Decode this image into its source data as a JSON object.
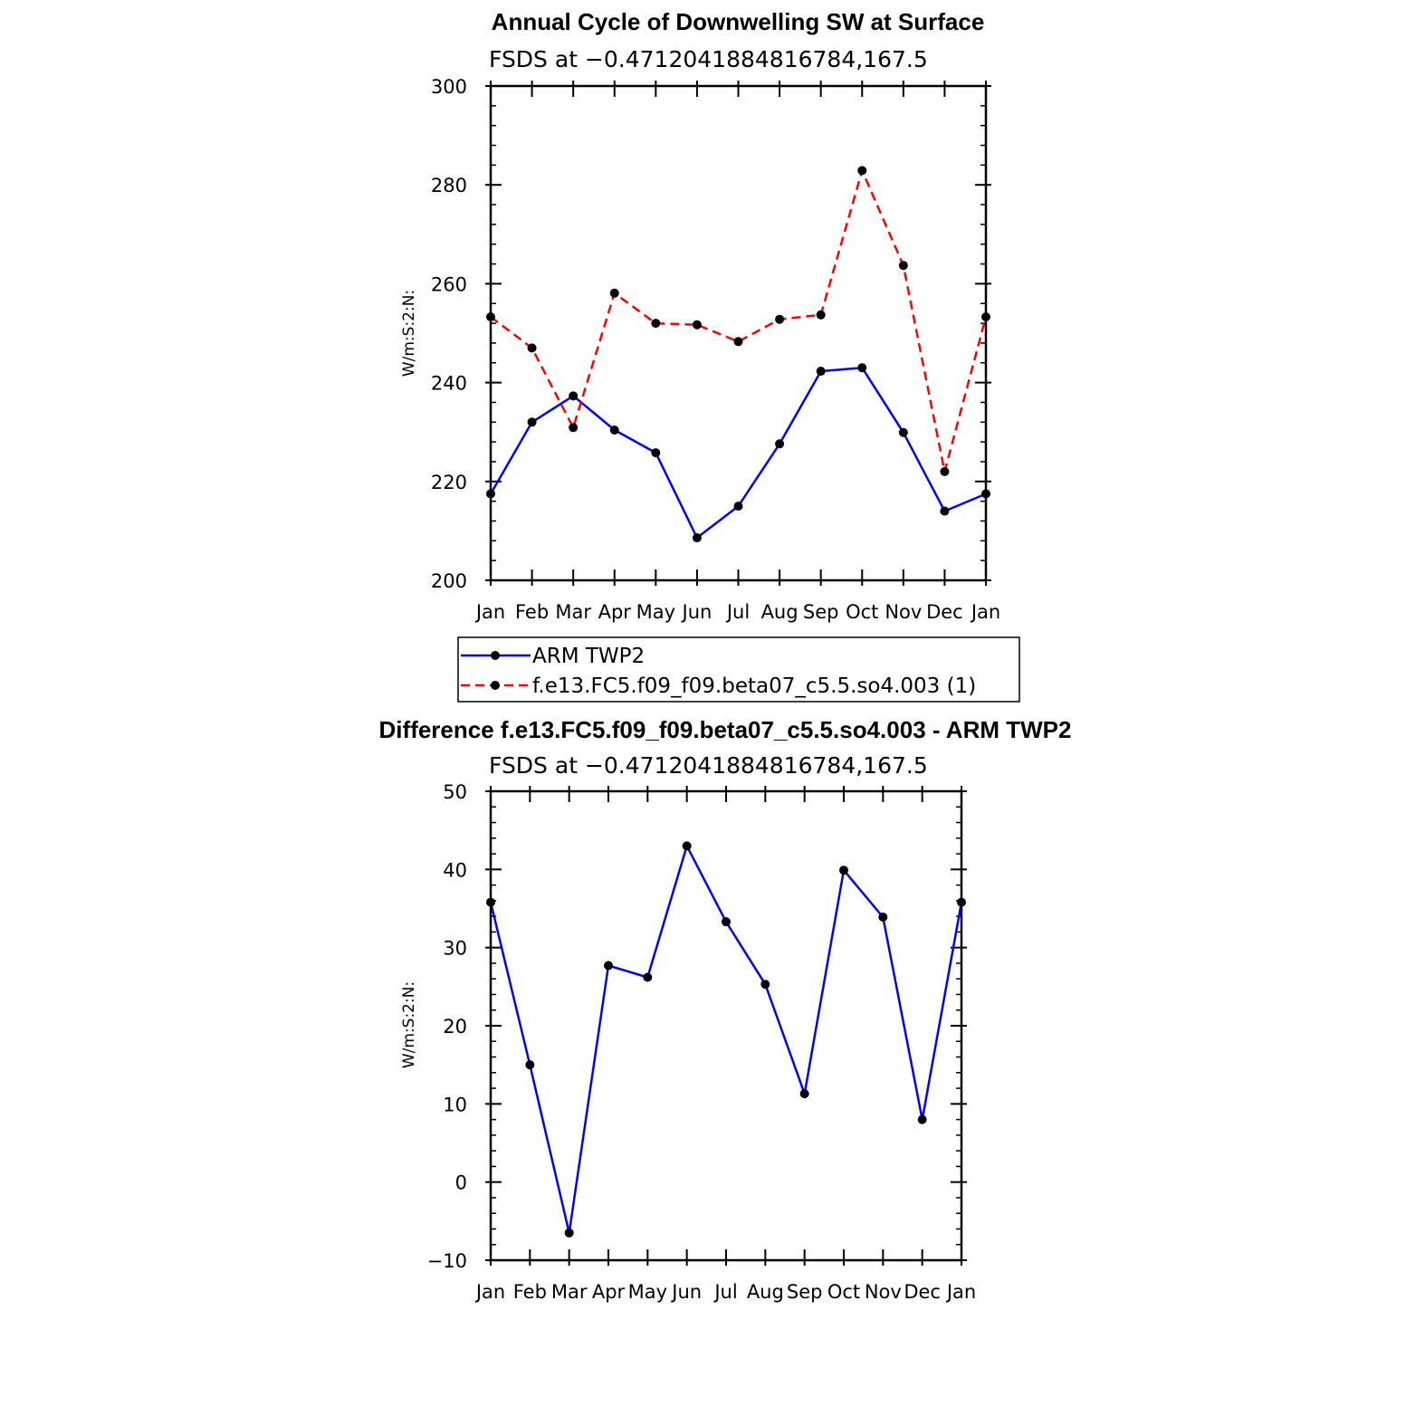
{
  "chart_data": [
    {
      "type": "line",
      "title": "Annual Cycle of Downwelling SW at Surface",
      "subtitle": "FSDS at −0.4712041884816784,167.5",
      "ylabel": "W/m:S:2:N:",
      "ylim": [
        200,
        300
      ],
      "yticks": [
        "200",
        "220",
        "240",
        "260",
        "280",
        "300"
      ],
      "categories": [
        "Jan",
        "Feb",
        "Mar",
        "Apr",
        "May",
        "Jun",
        "Jul",
        "Aug",
        "Sep",
        "Oct",
        "Nov",
        "Dec",
        "Jan"
      ],
      "series": [
        {
          "name": "ARM TWP2",
          "color": "#0000ff",
          "style": "solid",
          "values": [
            217.5,
            232.0,
            237.3,
            230.4,
            225.8,
            208.6,
            215.0,
            227.6,
            242.3,
            243.0,
            229.9,
            214.0,
            217.5
          ]
        },
        {
          "name": "f.e13.FC5.f09_f09.beta07_c5.5.so4.003 (1)",
          "color": "#ff0000",
          "style": "dashed",
          "values": [
            253.3,
            247.0,
            230.9,
            258.1,
            252.0,
            251.7,
            248.3,
            252.8,
            253.7,
            282.9,
            263.7,
            222.0,
            253.3
          ]
        }
      ]
    },
    {
      "type": "line",
      "title": "Difference f.e13.FC5.f09_f09.beta07_c5.5.so4.003 - ARM TWP2",
      "subtitle": "FSDS at −0.4712041884816784,167.5",
      "ylabel": "W/m:S:2:N:",
      "ylim": [
        -10,
        50
      ],
      "yticks": [
        "−10",
        "0",
        "10",
        "20",
        "30",
        "40",
        "50"
      ],
      "categories": [
        "Jan",
        "Feb",
        "Mar",
        "Apr",
        "May",
        "Jun",
        "Jul",
        "Aug",
        "Sep",
        "Oct",
        "Nov",
        "Dec",
        "Jan"
      ],
      "series": [
        {
          "name": "Difference",
          "color": "#0000ff",
          "style": "solid",
          "values": [
            35.8,
            15.0,
            -6.5,
            27.7,
            26.2,
            43.0,
            33.3,
            25.3,
            11.3,
            39.9,
            33.9,
            8.0,
            35.8
          ]
        }
      ]
    }
  ]
}
